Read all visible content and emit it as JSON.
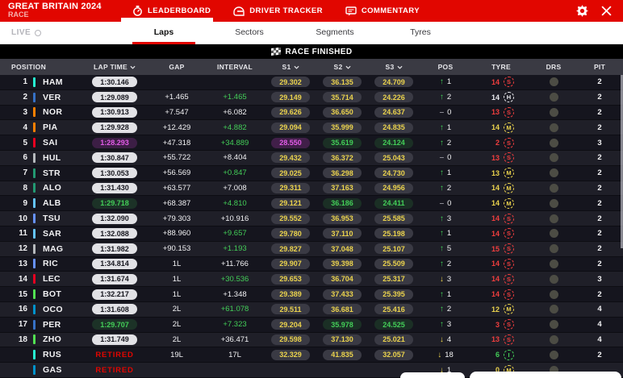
{
  "header": {
    "event_title": "GREAT BRITAIN 2024",
    "session": "RACE",
    "tabs": [
      {
        "label": "LEADERBOARD",
        "icon": "stopwatch-icon",
        "active": true
      },
      {
        "label": "DRIVER TRACKER",
        "icon": "helmet-icon",
        "active": false
      },
      {
        "label": "COMMENTARY",
        "icon": "comment-icon",
        "active": false
      }
    ],
    "settings_icon": "gear-icon",
    "close_icon": "close-icon"
  },
  "subnav": {
    "live_label": "LIVE",
    "tabs": [
      {
        "label": "Laps",
        "active": true
      },
      {
        "label": "Sectors",
        "active": false
      },
      {
        "label": "Segments",
        "active": false
      },
      {
        "label": "Tyres",
        "active": false
      }
    ]
  },
  "banner": {
    "text": "RACE FINISHED",
    "icon": "checkered-flag-icon"
  },
  "colors": {
    "f1_red": "#E10600",
    "yellow": "#EBD34D",
    "green": "#43CE58",
    "purple": "#E35CE8",
    "soft": "#F03E3E",
    "medium": "#EBD34D",
    "hard": "#ECECF0",
    "intermediate": "#43CE58"
  },
  "table": {
    "columns": [
      {
        "label": "POSITION",
        "sortable": false
      },
      {
        "label": "LAP TIME",
        "sortable": true
      },
      {
        "label": "GAP",
        "sortable": false
      },
      {
        "label": "INTERVAL",
        "sortable": false
      },
      {
        "label": "S1",
        "sortable": true
      },
      {
        "label": "S2",
        "sortable": true
      },
      {
        "label": "S3",
        "sortable": true
      },
      {
        "label": "POS",
        "sortable": false
      },
      {
        "label": "TYRE",
        "sortable": false
      },
      {
        "label": "DRS",
        "sortable": false
      },
      {
        "label": "PIT",
        "sortable": false
      }
    ],
    "rows": [
      {
        "position": "1",
        "team_color": "#27F4D2",
        "driver": "HAM",
        "retired": false,
        "lap": "1:30.146",
        "lap_style": "normal",
        "gap": "",
        "interval": "",
        "interval_style": "normal",
        "s1": "29.302",
        "s1_style": "yellow",
        "s2": "36.135",
        "s2_style": "yellow",
        "s3": "24.709",
        "s3_style": "yellow",
        "change_dir": "up",
        "change_val": "1",
        "tyre_laps": "14",
        "tyre_color": "soft",
        "compound": "S",
        "pit": "2"
      },
      {
        "position": "2",
        "team_color": "#3671C6",
        "driver": "VER",
        "retired": false,
        "lap": "1:29.089",
        "lap_style": "normal",
        "gap": "+1.465",
        "interval": "+1.465",
        "interval_style": "green",
        "s1": "29.149",
        "s1_style": "yellow",
        "s2": "35.714",
        "s2_style": "yellow",
        "s3": "24.226",
        "s3_style": "yellow",
        "change_dir": "up",
        "change_val": "2",
        "tyre_laps": "14",
        "tyre_color": "hard",
        "compound": "H",
        "pit": "2"
      },
      {
        "position": "3",
        "team_color": "#FF8000",
        "driver": "NOR",
        "retired": false,
        "lap": "1:30.913",
        "lap_style": "normal",
        "gap": "+7.547",
        "interval": "+6.082",
        "interval_style": "normal",
        "s1": "29.626",
        "s1_style": "yellow",
        "s2": "36.650",
        "s2_style": "yellow",
        "s3": "24.637",
        "s3_style": "yellow",
        "change_dir": "none",
        "change_val": "0",
        "tyre_laps": "13",
        "tyre_color": "soft",
        "compound": "S",
        "pit": "2"
      },
      {
        "position": "4",
        "team_color": "#FF8000",
        "driver": "PIA",
        "retired": false,
        "lap": "1:29.928",
        "lap_style": "normal",
        "gap": "+12.429",
        "interval": "+4.882",
        "interval_style": "green",
        "s1": "29.094",
        "s1_style": "yellow",
        "s2": "35.999",
        "s2_style": "yellow",
        "s3": "24.835",
        "s3_style": "yellow",
        "change_dir": "up",
        "change_val": "1",
        "tyre_laps": "14",
        "tyre_color": "medium",
        "compound": "M",
        "pit": "2"
      },
      {
        "position": "5",
        "team_color": "#E80020",
        "driver": "SAI",
        "retired": false,
        "lap": "1:28.293",
        "lap_style": "fastest",
        "gap": "+47.318",
        "interval": "+34.889",
        "interval_style": "green",
        "s1": "28.550",
        "s1_style": "purple",
        "s2": "35.619",
        "s2_style": "green",
        "s3": "24.124",
        "s3_style": "green",
        "change_dir": "up",
        "change_val": "2",
        "tyre_laps": "2",
        "tyre_color": "soft",
        "compound": "S",
        "pit": "3"
      },
      {
        "position": "6",
        "team_color": "#B6BABD",
        "driver": "HUL",
        "retired": false,
        "lap": "1:30.847",
        "lap_style": "normal",
        "gap": "+55.722",
        "interval": "+8.404",
        "interval_style": "normal",
        "s1": "29.432",
        "s1_style": "yellow",
        "s2": "36.372",
        "s2_style": "yellow",
        "s3": "25.043",
        "s3_style": "yellow",
        "change_dir": "none",
        "change_val": "0",
        "tyre_laps": "13",
        "tyre_color": "soft",
        "compound": "S",
        "pit": "2"
      },
      {
        "position": "7",
        "team_color": "#229971",
        "driver": "STR",
        "retired": false,
        "lap": "1:30.053",
        "lap_style": "normal",
        "gap": "+56.569",
        "interval": "+0.847",
        "interval_style": "green",
        "s1": "29.025",
        "s1_style": "yellow",
        "s2": "36.298",
        "s2_style": "yellow",
        "s3": "24.730",
        "s3_style": "yellow",
        "change_dir": "up",
        "change_val": "1",
        "tyre_laps": "13",
        "tyre_color": "medium",
        "compound": "M",
        "pit": "2"
      },
      {
        "position": "8",
        "team_color": "#229971",
        "driver": "ALO",
        "retired": false,
        "lap": "1:31.430",
        "lap_style": "normal",
        "gap": "+63.577",
        "interval": "+7.008",
        "interval_style": "normal",
        "s1": "29.311",
        "s1_style": "yellow",
        "s2": "37.163",
        "s2_style": "yellow",
        "s3": "24.956",
        "s3_style": "yellow",
        "change_dir": "up",
        "change_val": "2",
        "tyre_laps": "14",
        "tyre_color": "medium",
        "compound": "M",
        "pit": "2"
      },
      {
        "position": "9",
        "team_color": "#64C4FF",
        "driver": "ALB",
        "retired": false,
        "lap": "1:29.718",
        "lap_style": "best",
        "gap": "+68.387",
        "interval": "+4.810",
        "interval_style": "green",
        "s1": "29.121",
        "s1_style": "yellow",
        "s2": "36.186",
        "s2_style": "green",
        "s3": "24.411",
        "s3_style": "green",
        "change_dir": "none",
        "change_val": "0",
        "tyre_laps": "14",
        "tyre_color": "medium",
        "compound": "M",
        "pit": "2"
      },
      {
        "position": "10",
        "team_color": "#6692FF",
        "driver": "TSU",
        "retired": false,
        "lap": "1:32.090",
        "lap_style": "normal",
        "gap": "+79.303",
        "interval": "+10.916",
        "interval_style": "normal",
        "s1": "29.552",
        "s1_style": "yellow",
        "s2": "36.953",
        "s2_style": "yellow",
        "s3": "25.585",
        "s3_style": "yellow",
        "change_dir": "up",
        "change_val": "3",
        "tyre_laps": "14",
        "tyre_color": "soft",
        "compound": "S",
        "pit": "2"
      },
      {
        "position": "11",
        "team_color": "#64C4FF",
        "driver": "SAR",
        "retired": false,
        "lap": "1:32.088",
        "lap_style": "normal",
        "gap": "+88.960",
        "interval": "+9.657",
        "interval_style": "green",
        "s1": "29.780",
        "s1_style": "yellow",
        "s2": "37.110",
        "s2_style": "yellow",
        "s3": "25.198",
        "s3_style": "yellow",
        "change_dir": "up",
        "change_val": "1",
        "tyre_laps": "14",
        "tyre_color": "soft",
        "compound": "S",
        "pit": "2"
      },
      {
        "position": "12",
        "team_color": "#B6BABD",
        "driver": "MAG",
        "retired": false,
        "lap": "1:31.982",
        "lap_style": "normal",
        "gap": "+90.153",
        "interval": "+1.193",
        "interval_style": "green",
        "s1": "29.827",
        "s1_style": "yellow",
        "s2": "37.048",
        "s2_style": "yellow",
        "s3": "25.107",
        "s3_style": "yellow",
        "change_dir": "up",
        "change_val": "5",
        "tyre_laps": "15",
        "tyre_color": "soft",
        "compound": "S",
        "pit": "2"
      },
      {
        "position": "13",
        "team_color": "#6692FF",
        "driver": "RIC",
        "retired": false,
        "lap": "1:34.814",
        "lap_style": "normal",
        "gap": "1L",
        "interval": "+11.766",
        "interval_style": "normal",
        "s1": "29.907",
        "s1_style": "yellow",
        "s2": "39.398",
        "s2_style": "yellow",
        "s3": "25.509",
        "s3_style": "yellow",
        "change_dir": "up",
        "change_val": "2",
        "tyre_laps": "14",
        "tyre_color": "soft",
        "compound": "S",
        "pit": "2"
      },
      {
        "position": "14",
        "team_color": "#E80020",
        "driver": "LEC",
        "retired": false,
        "lap": "1:31.674",
        "lap_style": "normal",
        "gap": "1L",
        "interval": "+30.536",
        "interval_style": "green",
        "s1": "29.653",
        "s1_style": "yellow",
        "s2": "36.704",
        "s2_style": "yellow",
        "s3": "25.317",
        "s3_style": "yellow",
        "change_dir": "down",
        "change_val": "3",
        "tyre_laps": "14",
        "tyre_color": "soft",
        "compound": "S",
        "pit": "3"
      },
      {
        "position": "15",
        "team_color": "#52E252",
        "driver": "BOT",
        "retired": false,
        "lap": "1:32.217",
        "lap_style": "normal",
        "gap": "1L",
        "interval": "+1.348",
        "interval_style": "normal",
        "s1": "29.389",
        "s1_style": "yellow",
        "s2": "37.433",
        "s2_style": "yellow",
        "s3": "25.395",
        "s3_style": "yellow",
        "change_dir": "up",
        "change_val": "1",
        "tyre_laps": "14",
        "tyre_color": "soft",
        "compound": "S",
        "pit": "2"
      },
      {
        "position": "16",
        "team_color": "#0093CC",
        "driver": "OCO",
        "retired": false,
        "lap": "1:31.608",
        "lap_style": "normal",
        "gap": "2L",
        "interval": "+61.078",
        "interval_style": "green",
        "s1": "29.511",
        "s1_style": "yellow",
        "s2": "36.681",
        "s2_style": "yellow",
        "s3": "25.416",
        "s3_style": "yellow",
        "change_dir": "up",
        "change_val": "2",
        "tyre_laps": "12",
        "tyre_color": "medium",
        "compound": "M",
        "pit": "4"
      },
      {
        "position": "17",
        "team_color": "#3671C6",
        "driver": "PER",
        "retired": false,
        "lap": "1:29.707",
        "lap_style": "best",
        "gap": "2L",
        "interval": "+7.323",
        "interval_style": "green",
        "s1": "29.204",
        "s1_style": "yellow",
        "s2": "35.978",
        "s2_style": "green",
        "s3": "24.525",
        "s3_style": "green",
        "change_dir": "up",
        "change_val": "3",
        "tyre_laps": "3",
        "tyre_color": "soft",
        "compound": "S",
        "pit": "4"
      },
      {
        "position": "18",
        "team_color": "#52E252",
        "driver": "ZHO",
        "retired": false,
        "lap": "1:31.749",
        "lap_style": "normal",
        "gap": "2L",
        "interval": "+36.471",
        "interval_style": "normal",
        "s1": "29.598",
        "s1_style": "yellow",
        "s2": "37.130",
        "s2_style": "yellow",
        "s3": "25.021",
        "s3_style": "yellow",
        "change_dir": "down",
        "change_val": "4",
        "tyre_laps": "13",
        "tyre_color": "soft",
        "compound": "S",
        "pit": "4"
      },
      {
        "position": "",
        "team_color": "#27F4D2",
        "driver": "RUS",
        "retired": true,
        "lap": "RETIRED",
        "lap_style": "retired",
        "gap": "19L",
        "interval": "17L",
        "interval_style": "normal",
        "s1": "32.329",
        "s1_style": "yellow",
        "s2": "41.835",
        "s2_style": "yellow",
        "s3": "32.057",
        "s3_style": "yellow",
        "change_dir": "down",
        "change_val": "18",
        "tyre_laps": "6",
        "tyre_color": "inter",
        "compound": "I",
        "pit": "2"
      },
      {
        "position": "",
        "team_color": "#0093CC",
        "driver": "GAS",
        "retired": true,
        "lap": "RETIRED",
        "lap_style": "retired",
        "gap": "",
        "interval": "",
        "interval_style": "normal",
        "s1": "",
        "s1_style": "yellow",
        "s2": "",
        "s2_style": "yellow",
        "s3": "",
        "s3_style": "yellow",
        "change_dir": "down",
        "change_val": "1",
        "tyre_laps": "0",
        "tyre_color": "medium",
        "compound": "M",
        "pit": ""
      }
    ]
  }
}
